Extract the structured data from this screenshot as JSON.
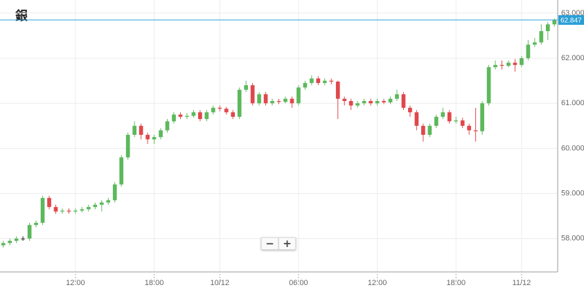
{
  "chart_data": {
    "type": "candlestick",
    "title": "銀",
    "categories": [
      null,
      null,
      null,
      null,
      null,
      null,
      null,
      null,
      null,
      null,
      null,
      "12:00",
      null,
      null,
      null,
      null,
      null,
      null,
      null,
      null,
      null,
      null,
      null,
      "18:00",
      null,
      null,
      null,
      null,
      null,
      null,
      null,
      null,
      null,
      "10/12",
      null,
      null,
      null,
      null,
      null,
      null,
      null,
      null,
      null,
      null,
      null,
      "06:00",
      null,
      null,
      null,
      null,
      null,
      null,
      null,
      null,
      null,
      null,
      null,
      "12:00",
      null,
      null,
      null,
      null,
      null,
      null,
      null,
      null,
      null,
      null,
      null,
      "18:00",
      null,
      null,
      null,
      null,
      null,
      null,
      null,
      null,
      null,
      "11/12",
      null,
      null,
      null,
      null,
      null
    ],
    "candles": [
      [
        57.85,
        57.95,
        57.8,
        57.9
      ],
      [
        57.9,
        58.0,
        57.85,
        57.95
      ],
      [
        57.95,
        58.05,
        57.9,
        58.0
      ],
      [
        58.0,
        58.05,
        57.95,
        58.0
      ],
      [
        58.0,
        58.35,
        57.95,
        58.3
      ],
      [
        58.3,
        58.4,
        58.25,
        58.35
      ],
      [
        58.35,
        58.95,
        58.3,
        58.9
      ],
      [
        58.9,
        58.95,
        58.65,
        58.7
      ],
      [
        58.7,
        58.75,
        58.55,
        58.6
      ],
      [
        58.6,
        58.67,
        58.55,
        58.62
      ],
      [
        58.62,
        58.67,
        58.55,
        58.6
      ],
      [
        58.6,
        58.67,
        58.55,
        58.62
      ],
      [
        58.62,
        58.7,
        58.58,
        58.65
      ],
      [
        58.65,
        58.75,
        58.6,
        58.7
      ],
      [
        58.7,
        58.8,
        58.65,
        58.75
      ],
      [
        58.75,
        58.85,
        58.6,
        58.8
      ],
      [
        58.8,
        58.9,
        58.75,
        58.85
      ],
      [
        58.85,
        59.25,
        58.8,
        59.2
      ],
      [
        59.2,
        59.85,
        59.15,
        59.8
      ],
      [
        59.8,
        60.35,
        59.75,
        60.3
      ],
      [
        60.3,
        60.6,
        60.25,
        60.5
      ],
      [
        60.5,
        60.55,
        60.2,
        60.3
      ],
      [
        60.3,
        60.35,
        60.1,
        60.2
      ],
      [
        60.2,
        60.3,
        60.1,
        60.25
      ],
      [
        60.25,
        60.45,
        60.2,
        60.4
      ],
      [
        60.4,
        60.65,
        60.35,
        60.6
      ],
      [
        60.6,
        60.8,
        60.55,
        60.75
      ],
      [
        60.75,
        60.8,
        60.65,
        60.7
      ],
      [
        60.7,
        60.78,
        60.65,
        60.72
      ],
      [
        60.72,
        60.85,
        60.68,
        60.8
      ],
      [
        60.8,
        60.85,
        60.6,
        60.65
      ],
      [
        60.65,
        60.85,
        60.6,
        60.8
      ],
      [
        60.8,
        60.95,
        60.75,
        60.9
      ],
      [
        60.9,
        60.95,
        60.82,
        60.88
      ],
      [
        60.88,
        60.92,
        60.75,
        60.8
      ],
      [
        60.8,
        60.85,
        60.65,
        60.7
      ],
      [
        60.7,
        61.35,
        60.65,
        61.3
      ],
      [
        61.3,
        61.5,
        61.25,
        61.4
      ],
      [
        61.4,
        61.45,
        60.95,
        61.0
      ],
      [
        61.0,
        61.25,
        60.95,
        61.2
      ],
      [
        61.2,
        61.25,
        60.95,
        61.0
      ],
      [
        61.0,
        61.1,
        60.95,
        61.05
      ],
      [
        61.05,
        61.1,
        60.98,
        61.03
      ],
      [
        61.03,
        61.15,
        61.0,
        61.1
      ],
      [
        61.1,
        61.15,
        60.9,
        61.0
      ],
      [
        61.0,
        61.4,
        60.95,
        61.35
      ],
      [
        61.35,
        61.5,
        61.3,
        61.45
      ],
      [
        61.45,
        61.62,
        61.4,
        61.55
      ],
      [
        61.55,
        61.6,
        61.4,
        61.45
      ],
      [
        61.45,
        61.55,
        61.4,
        61.5
      ],
      [
        61.5,
        61.55,
        61.42,
        61.48
      ],
      [
        61.48,
        61.5,
        60.65,
        61.1
      ],
      [
        61.1,
        61.15,
        60.95,
        61.05
      ],
      [
        61.05,
        61.1,
        60.85,
        60.95
      ],
      [
        60.95,
        61.05,
        60.9,
        61.0
      ],
      [
        61.0,
        61.1,
        60.95,
        61.05
      ],
      [
        61.05,
        61.1,
        60.95,
        61.0
      ],
      [
        61.0,
        61.1,
        60.95,
        61.05
      ],
      [
        61.05,
        61.1,
        60.98,
        61.02
      ],
      [
        61.02,
        61.15,
        60.98,
        61.1
      ],
      [
        61.1,
        61.3,
        61.05,
        61.2
      ],
      [
        61.2,
        61.25,
        60.85,
        60.9
      ],
      [
        60.9,
        60.95,
        60.7,
        60.8
      ],
      [
        60.8,
        60.85,
        60.4,
        60.5
      ],
      [
        60.5,
        60.55,
        60.15,
        60.3
      ],
      [
        60.3,
        60.55,
        60.25,
        60.5
      ],
      [
        60.5,
        60.75,
        60.45,
        60.7
      ],
      [
        60.7,
        60.9,
        60.65,
        60.8
      ],
      [
        60.8,
        60.85,
        60.55,
        60.6
      ],
      [
        60.6,
        60.7,
        60.55,
        60.62
      ],
      [
        60.62,
        60.68,
        60.45,
        60.5
      ],
      [
        60.5,
        60.55,
        60.3,
        60.4
      ],
      [
        60.4,
        60.9,
        60.15,
        60.38
      ],
      [
        60.38,
        61.05,
        60.3,
        61.0
      ],
      [
        61.0,
        61.85,
        60.95,
        61.8
      ],
      [
        61.8,
        61.95,
        61.75,
        61.85
      ],
      [
        61.85,
        61.95,
        61.75,
        61.83
      ],
      [
        61.83,
        61.95,
        61.8,
        61.9
      ],
      [
        61.9,
        61.98,
        61.7,
        61.85
      ],
      [
        61.85,
        62.05,
        61.8,
        62.0
      ],
      [
        62.0,
        62.4,
        61.95,
        62.3
      ],
      [
        62.3,
        62.45,
        62.25,
        62.35
      ],
      [
        62.35,
        62.75,
        62.3,
        62.6
      ],
      [
        62.6,
        62.8,
        62.4,
        62.75
      ],
      [
        62.75,
        62.88,
        62.7,
        62.847
      ]
    ],
    "up_color": "#5cb85c",
    "down_color": "#e0474c",
    "last_price": 62.847,
    "last_price_color": "#2a9fd6",
    "ylim": [
      57.26,
      63.29
    ],
    "yticks": [
      {
        "value": 58,
        "label": "58.000"
      },
      {
        "value": 59,
        "label": "59.000"
      },
      {
        "value": 60,
        "label": "60.000"
      },
      {
        "value": 61,
        "label": "61.000"
      },
      {
        "value": 62,
        "label": "62.000"
      },
      {
        "value": 63,
        "label": "63.000"
      }
    ],
    "grid": true
  },
  "controls": {
    "zoom_out": "−",
    "zoom_in": "+"
  }
}
